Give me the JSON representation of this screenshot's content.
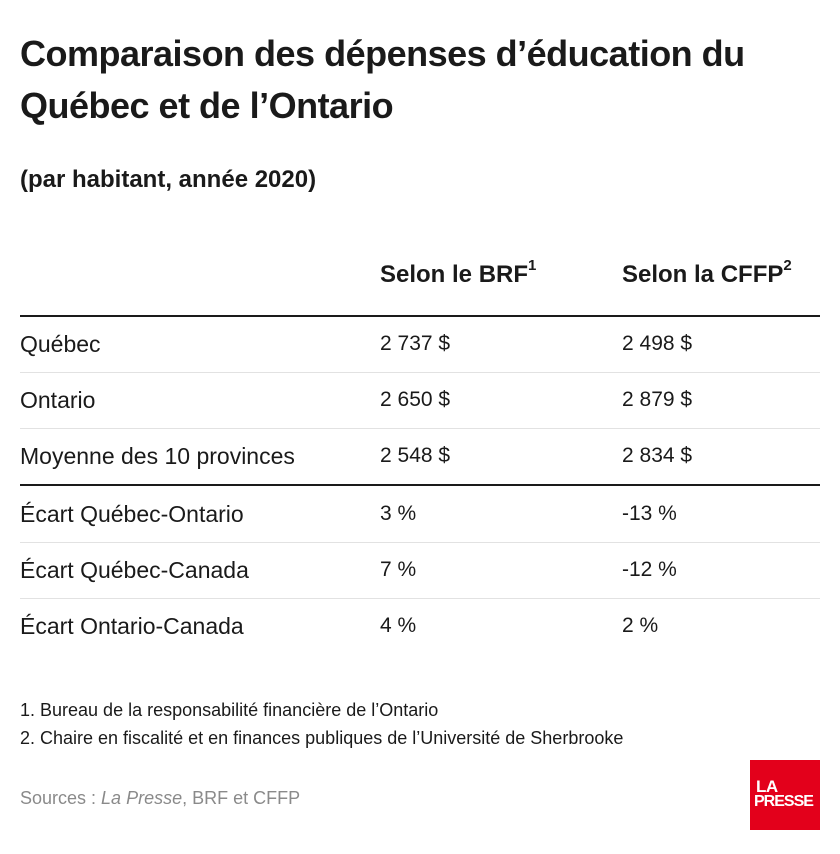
{
  "title": "Comparaison des dépenses d’éducation du Québec et de l’Ontario",
  "subtitle": "(par habitant, année 2020)",
  "columns": {
    "brf": "Selon le BRF",
    "brf_note": "1",
    "cffp": "Selon la CFFP",
    "cffp_note": "2"
  },
  "rows": [
    {
      "label": "Québec",
      "brf": "2 737 $",
      "cffp": "2 498 $"
    },
    {
      "label": "Ontario",
      "brf": "2 650 $",
      "cffp": "2 879 $"
    },
    {
      "label": "Moyenne des 10 provinces",
      "brf": "2 548 $",
      "cffp": "2 834 $"
    },
    {
      "label": "Écart Québec-Ontario",
      "brf": "3 %",
      "cffp": "-13 %"
    },
    {
      "label": "Écart Québec-Canada",
      "brf": "7 %",
      "cffp": "-12 %"
    },
    {
      "label": "Écart Ontario-Canada",
      "brf": "4 %",
      "cffp": "2 %"
    }
  ],
  "notes": [
    "1. Bureau de la responsabilité financière de l’Ontario",
    "2. Chaire en fiscalité et en finances publiques de l’Université de Sherbrooke"
  ],
  "sources": {
    "prefix": "Sources : ",
    "italic": "La Presse",
    "suffix": ", BRF et CFFP"
  },
  "logo": {
    "line1": "LA",
    "line2": "PRESSE",
    "color": "#e3001b"
  },
  "chart_data": {
    "type": "table",
    "title": "Comparaison des dépenses d’éducation du Québec et de l’Ontario",
    "subtitle": "(par habitant, année 2020)",
    "columns": [
      "Selon le BRF",
      "Selon la CFFP"
    ],
    "rows": [
      {
        "label": "Québec",
        "values": [
          2737,
          2498
        ],
        "unit": "$"
      },
      {
        "label": "Ontario",
        "values": [
          2650,
          2879
        ],
        "unit": "$"
      },
      {
        "label": "Moyenne des 10 provinces",
        "values": [
          2548,
          2834
        ],
        "unit": "$"
      },
      {
        "label": "Écart Québec-Ontario",
        "values": [
          3,
          -13
        ],
        "unit": "%"
      },
      {
        "label": "Écart Québec-Canada",
        "values": [
          7,
          -12
        ],
        "unit": "%"
      },
      {
        "label": "Écart Ontario-Canada",
        "values": [
          4,
          2
        ],
        "unit": "%"
      }
    ]
  }
}
